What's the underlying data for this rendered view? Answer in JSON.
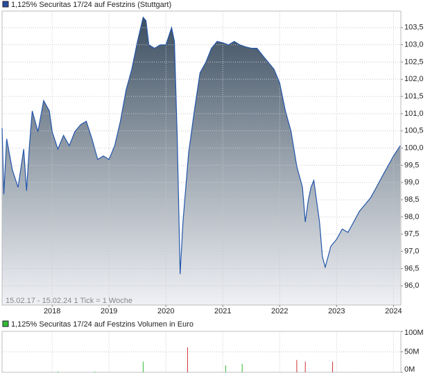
{
  "chart_data": [
    {
      "type": "area",
      "title": "1,125% Securitas 17/24 auf Festzins (Stuttgart)",
      "subtitle": "15.02.17 - 15.02.24   1 Tick = 1 Woche",
      "color": "#2255aa",
      "x": [
        2017.12,
        2017.15,
        2017.2,
        2017.3,
        2017.4,
        2017.5,
        2017.55,
        2017.6,
        2017.65,
        2017.75,
        2017.85,
        2017.95,
        2018.0,
        2018.1,
        2018.2,
        2018.3,
        2018.4,
        2018.5,
        2018.6,
        2018.7,
        2018.8,
        2018.9,
        2019.0,
        2019.1,
        2019.2,
        2019.3,
        2019.4,
        2019.5,
        2019.6,
        2019.65,
        2019.7,
        2019.8,
        2019.9,
        2020.0,
        2020.1,
        2020.15,
        2020.2,
        2020.25,
        2020.28,
        2020.3,
        2020.4,
        2020.5,
        2020.6,
        2020.7,
        2020.8,
        2020.9,
        2021.0,
        2021.1,
        2021.2,
        2021.3,
        2021.4,
        2021.5,
        2021.6,
        2021.7,
        2021.8,
        2021.9,
        2022.0,
        2022.1,
        2022.2,
        2022.3,
        2022.4,
        2022.45,
        2022.5,
        2022.55,
        2022.6,
        2022.7,
        2022.75,
        2022.8,
        2022.9,
        2023.0,
        2023.1,
        2023.2,
        2023.3,
        2023.4,
        2023.5,
        2023.6,
        2023.7,
        2023.8,
        2023.9,
        2024.0,
        2024.12
      ],
      "values": [
        100.58,
        98.66,
        100.27,
        99.37,
        98.86,
        99.97,
        98.76,
        100.07,
        101.08,
        100.48,
        101.38,
        101.08,
        100.48,
        99.97,
        100.37,
        100.07,
        100.48,
        100.68,
        100.78,
        100.27,
        99.67,
        99.77,
        99.67,
        100.07,
        100.78,
        101.69,
        102.29,
        103.1,
        103.8,
        103.7,
        103.0,
        102.9,
        103.0,
        103.0,
        103.5,
        103.1,
        100.27,
        96.34,
        97.25,
        97.85,
        99.87,
        101.08,
        102.19,
        102.49,
        102.9,
        103.1,
        103.06,
        103.0,
        103.1,
        103.0,
        102.94,
        102.9,
        102.9,
        102.69,
        102.49,
        102.29,
        101.89,
        101.08,
        100.48,
        99.47,
        98.86,
        97.85,
        98.46,
        98.86,
        99.06,
        97.85,
        96.85,
        96.54,
        97.15,
        97.35,
        97.65,
        97.55,
        97.85,
        98.16,
        98.36,
        98.56,
        98.86,
        99.17,
        99.47,
        99.77,
        100.07
      ],
      "xlim": [
        2017.12,
        2024.13
      ],
      "ylim": [
        95.44,
        103.98
      ],
      "xticks": [
        2018,
        2019,
        2020,
        2021,
        2022,
        2023,
        2024
      ],
      "yticks": [
        {
          "value": 96,
          "label": "96,0"
        },
        {
          "value": 96.5,
          "label": "96,5"
        },
        {
          "value": 97,
          "label": "97,0"
        },
        {
          "value": 97.5,
          "label": "97,5"
        },
        {
          "value": 98,
          "label": "98,0"
        },
        {
          "value": 98.5,
          "label": "98,5"
        },
        {
          "value": 99,
          "label": "99,0"
        },
        {
          "value": 99.5,
          "label": "99,5"
        },
        {
          "value": 100,
          "label": "100,0"
        },
        {
          "value": 100.5,
          "label": "100,5"
        },
        {
          "value": 101,
          "label": "101,0"
        },
        {
          "value": 101.5,
          "label": "101,5"
        },
        {
          "value": 102,
          "label": "102,0"
        },
        {
          "value": 102.5,
          "label": "102,5"
        },
        {
          "value": 103,
          "label": "103,0"
        },
        {
          "value": 103.5,
          "label": "103,5"
        }
      ],
      "grid": true
    },
    {
      "type": "bar",
      "title": "1,125% Securitas 17/24 auf Festzins Volumen in Euro",
      "color": "#33bb33",
      "x": [
        2018.1,
        2018.75,
        2019.6,
        2020.38,
        2021.05,
        2021.34,
        2022.3,
        2022.45,
        2022.93
      ],
      "values": [
        2,
        2,
        26,
        61,
        17,
        21,
        30,
        26,
        26
      ],
      "colors": [
        "#33bb33",
        "#33bb33",
        "#33bb33",
        "#cc3333",
        "#33bb33",
        "#33bb33",
        "#cc3333",
        "#cc3333",
        "#cc3333"
      ],
      "xlim": [
        2017.12,
        2024.13
      ],
      "ylim": [
        0,
        100
      ],
      "yticks": [
        {
          "value": 0,
          "label": "0M"
        },
        {
          "value": 50,
          "label": "50M"
        },
        {
          "value": 100,
          "label": "100M"
        }
      ],
      "grid": true
    }
  ]
}
